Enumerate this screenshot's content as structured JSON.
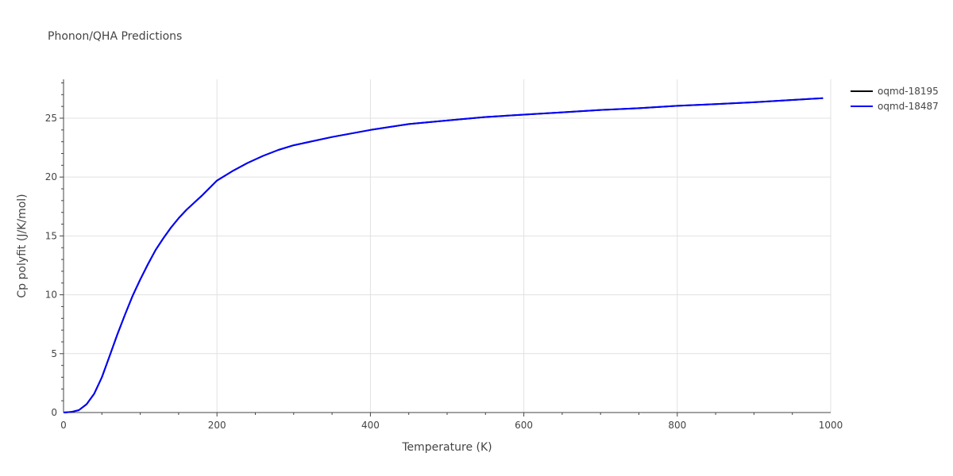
{
  "chart_data": {
    "type": "line",
    "title": "Phonon/QHA Predictions",
    "xlabel": "Temperature (K)",
    "ylabel": "Cp polyfit (J/K/mol)",
    "xlim": [
      0,
      1000
    ],
    "ylim": [
      0,
      28.3
    ],
    "x_ticks": [
      0,
      200,
      400,
      600,
      800,
      1000
    ],
    "y_ticks": [
      0,
      5,
      10,
      15,
      20,
      25
    ],
    "x_tick_labels": [
      "0",
      "200",
      "400",
      "600",
      "800",
      "1000"
    ],
    "y_tick_labels": [
      "0",
      "5",
      "10",
      "15",
      "20",
      "25"
    ],
    "grid": true,
    "legend_position": "top-right",
    "series": [
      {
        "name": "oqmd-18195",
        "color": "#000000",
        "x": [
          0,
          10,
          20,
          30,
          40,
          50,
          60,
          70,
          80,
          90,
          100,
          110,
          120,
          130,
          140,
          150,
          160,
          170,
          180,
          200,
          220,
          240,
          260,
          280,
          300,
          350,
          400,
          450,
          500,
          550,
          600,
          650,
          700,
          750,
          800,
          850,
          900,
          950,
          990
        ],
        "y": [
          0,
          0.05,
          0.2,
          0.7,
          1.6,
          3.0,
          4.8,
          6.6,
          8.3,
          9.9,
          11.3,
          12.6,
          13.8,
          14.8,
          15.7,
          16.5,
          17.2,
          17.8,
          18.4,
          19.7,
          20.5,
          21.2,
          21.8,
          22.3,
          22.7,
          23.4,
          24.0,
          24.5,
          24.8,
          25.1,
          25.3,
          25.5,
          25.7,
          25.85,
          26.05,
          26.2,
          26.35,
          26.55,
          26.7
        ]
      },
      {
        "name": "oqmd-18487",
        "color": "#0000ff",
        "x": [
          0,
          10,
          20,
          30,
          40,
          50,
          60,
          70,
          80,
          90,
          100,
          110,
          120,
          130,
          140,
          150,
          160,
          170,
          180,
          200,
          220,
          240,
          260,
          280,
          300,
          350,
          400,
          450,
          500,
          550,
          600,
          650,
          700,
          750,
          800,
          850,
          900,
          950,
          990
        ],
        "y": [
          0,
          0.05,
          0.2,
          0.7,
          1.6,
          3.0,
          4.8,
          6.6,
          8.3,
          9.9,
          11.3,
          12.6,
          13.8,
          14.8,
          15.7,
          16.5,
          17.2,
          17.8,
          18.4,
          19.7,
          20.5,
          21.2,
          21.8,
          22.3,
          22.7,
          23.4,
          24.0,
          24.5,
          24.8,
          25.1,
          25.3,
          25.5,
          25.7,
          25.85,
          26.05,
          26.2,
          26.35,
          26.55,
          26.7
        ]
      }
    ]
  }
}
